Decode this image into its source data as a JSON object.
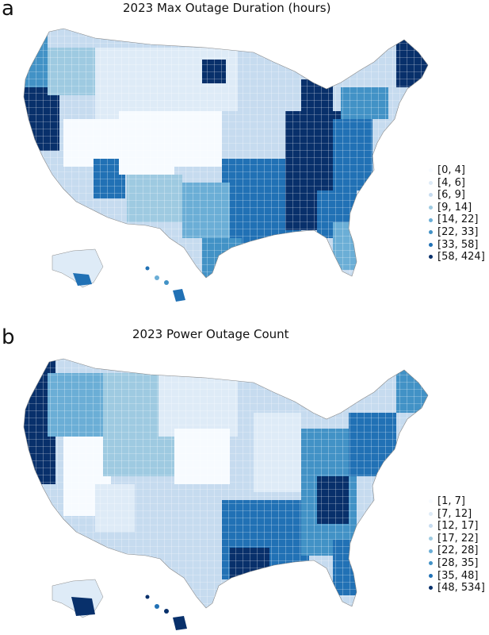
{
  "panels": [
    {
      "letter": "a",
      "title": "2023 Max Outage Duration (hours)",
      "legend": [
        {
          "label": "[0, 4]",
          "color": "#f7fbff"
        },
        {
          "label": "[4, 6]",
          "color": "#deebf7"
        },
        {
          "label": "[6, 9]",
          "color": "#c6dbef"
        },
        {
          "label": "[9, 14]",
          "color": "#9ecae1"
        },
        {
          "label": "[14, 22]",
          "color": "#6baed6"
        },
        {
          "label": "[22, 33]",
          "color": "#4292c6"
        },
        {
          "label": "[33, 58]",
          "color": "#2171b5"
        },
        {
          "label": "[58, 424]",
          "color": "#08306b"
        }
      ]
    },
    {
      "letter": "b",
      "title": "2023 Power Outage Count",
      "legend": [
        {
          "label": "[1, 7]",
          "color": "#f7fbff"
        },
        {
          "label": "[7, 12]",
          "color": "#deebf7"
        },
        {
          "label": "[12, 17]",
          "color": "#c6dbef"
        },
        {
          "label": "[17, 22]",
          "color": "#9ecae1"
        },
        {
          "label": "[22, 28]",
          "color": "#6baed6"
        },
        {
          "label": "[28, 35]",
          "color": "#4292c6"
        },
        {
          "label": "[35, 48]",
          "color": "#2171b5"
        },
        {
          "label": "[48, 534]",
          "color": "#08306b"
        }
      ]
    }
  ]
}
